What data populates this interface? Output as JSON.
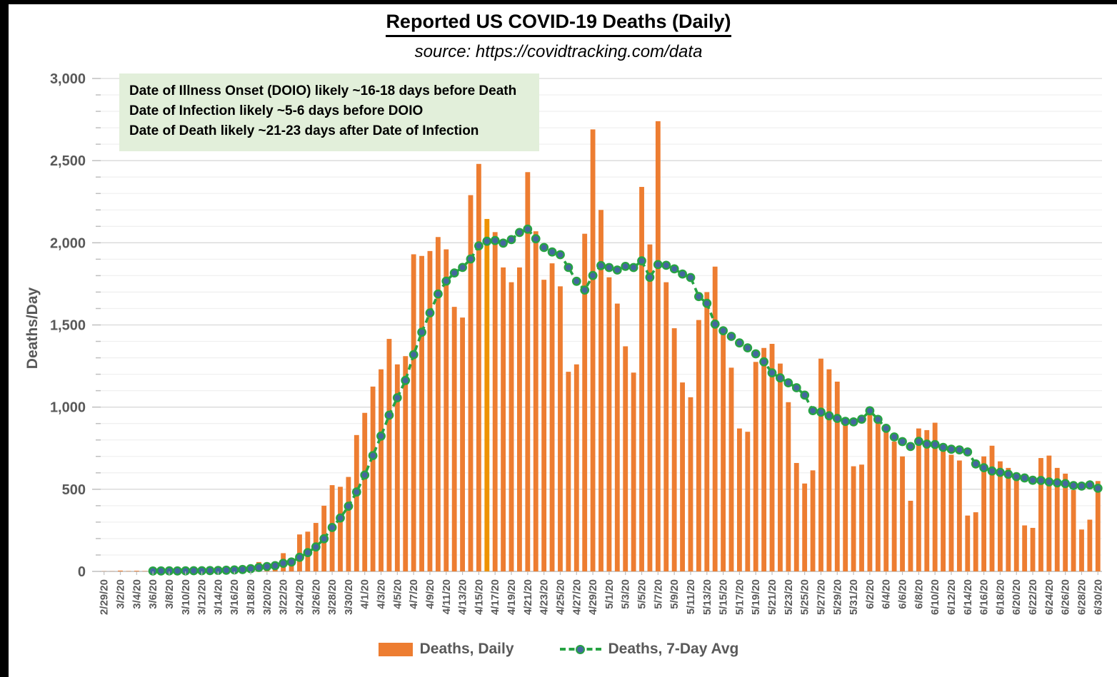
{
  "header": {
    "title": "Reported US COVID-19 Deaths (Daily)",
    "subtitle": "source: https://covidtracking.com/data"
  },
  "annotation": {
    "line1": "Date of Illness Onset (DOIO) likely ~16-18 days before Death",
    "line2": "Date of Infection likely ~5-6 days before DOIO",
    "line3": "Date of Death likely ~21-23 days after Date of Infection"
  },
  "legend": {
    "daily_label": "Deaths, Daily",
    "avg_label": "Deaths, 7-Day Avg"
  },
  "colors": {
    "bar": "#ED7D31",
    "highlight_bar": "#EE9302",
    "avg_line": "#27A343",
    "avg_marker_fill": "#44679F",
    "annotation_bg": "#E2EFDA",
    "axis_text": "#595959",
    "gridline_major": "#D9D9D9",
    "gridline_minor": "#F0F0F0",
    "axis_line": "#BFBFBF"
  },
  "chart_data": {
    "type": "bar",
    "title": "Reported US COVID-19 Deaths (Daily)",
    "xlabel": "",
    "ylabel": "Deaths/Day",
    "ylim": [
      0,
      3000
    ],
    "y_major_step": 500,
    "y_minor_step": 100,
    "y_tick_labels": [
      "0",
      "500",
      "1,000",
      "1,500",
      "2,000",
      "2,500",
      "3,000"
    ],
    "grid": "horizontal, minor every 100 and major every 500",
    "legend_position": "bottom center",
    "x": [
      "2/29/20",
      "3/1/20",
      "3/2/20",
      "3/3/20",
      "3/4/20",
      "3/5/20",
      "3/6/20",
      "3/7/20",
      "3/8/20",
      "3/9/20",
      "3/10/20",
      "3/11/20",
      "3/12/20",
      "3/13/20",
      "3/14/20",
      "3/15/20",
      "3/16/20",
      "3/17/20",
      "3/18/20",
      "3/19/20",
      "3/20/20",
      "3/21/20",
      "3/22/20",
      "3/23/20",
      "3/24/20",
      "3/25/20",
      "3/26/20",
      "3/27/20",
      "3/28/20",
      "3/29/20",
      "3/30/20",
      "3/31/20",
      "4/1/20",
      "4/2/20",
      "4/3/20",
      "4/4/20",
      "4/5/20",
      "4/6/20",
      "4/7/20",
      "4/8/20",
      "4/9/20",
      "4/10/20",
      "4/11/20",
      "4/12/20",
      "4/13/20",
      "4/14/20",
      "4/15/20",
      "4/16/20",
      "4/17/20",
      "4/18/20",
      "4/19/20",
      "4/20/20",
      "4/21/20",
      "4/22/20",
      "4/23/20",
      "4/24/20",
      "4/25/20",
      "4/26/20",
      "4/27/20",
      "4/28/20",
      "4/29/20",
      "4/30/20",
      "5/1/20",
      "5/2/20",
      "5/3/20",
      "5/4/20",
      "5/5/20",
      "5/6/20",
      "5/7/20",
      "5/8/20",
      "5/9/20",
      "5/10/20",
      "5/11/20",
      "5/12/20",
      "5/13/20",
      "5/14/20",
      "5/15/20",
      "5/16/20",
      "5/17/20",
      "5/18/20",
      "5/19/20",
      "5/20/20",
      "5/21/20",
      "5/22/20",
      "5/23/20",
      "5/24/20",
      "5/25/20",
      "5/26/20",
      "5/27/20",
      "5/28/20",
      "5/29/20",
      "5/30/20",
      "5/31/20",
      "6/1/20",
      "6/2/20",
      "6/3/20",
      "6/4/20",
      "6/5/20",
      "6/6/20",
      "6/7/20",
      "6/8/20",
      "6/9/20",
      "6/10/20",
      "6/11/20",
      "6/12/20",
      "6/13/20",
      "6/14/20",
      "6/15/20",
      "6/16/20",
      "6/17/20",
      "6/18/20",
      "6/19/20",
      "6/20/20",
      "6/21/20",
      "6/22/20",
      "6/23/20",
      "6/24/20",
      "6/25/20",
      "6/26/20",
      "6/27/20",
      "6/28/20",
      "6/29/20",
      "6/30/20"
    ],
    "x_tick_labels_every": 2,
    "series": [
      {
        "name": "Deaths, Daily",
        "type": "bar",
        "color": "#ED7D31",
        "highlight_index": 47,
        "highlight_date": "4/16/20",
        "highlight_color": "#EE9302",
        "values": [
          1,
          1,
          5,
          2,
          4,
          2,
          3,
          3,
          4,
          4,
          5,
          8,
          4,
          8,
          10,
          12,
          18,
          23,
          41,
          57,
          49,
          46,
          111,
          73,
          225,
          242,
          295,
          400,
          525,
          515,
          575,
          830,
          965,
          1125,
          1230,
          1415,
          1260,
          1310,
          1930,
          1920,
          1950,
          2035,
          1960,
          1610,
          1545,
          2290,
          2480,
          2145,
          2065,
          1850,
          1760,
          1850,
          2430,
          2070,
          1775,
          1875,
          1735,
          1215,
          1260,
          2055,
          2690,
          2200,
          1790,
          1630,
          1370,
          1210,
          2340,
          1990,
          2740,
          1760,
          1480,
          1150,
          1060,
          1530,
          1700,
          1855,
          1480,
          1240,
          870,
          850,
          1275,
          1360,
          1385,
          1265,
          1030,
          660,
          535,
          615,
          1295,
          1230,
          1155,
          900,
          640,
          650,
          975,
          925,
          850,
          790,
          700,
          430,
          870,
          860,
          905,
          730,
          710,
          675,
          340,
          360,
          700,
          765,
          670,
          630,
          575,
          280,
          265,
          690,
          705,
          630,
          595,
          495,
          255,
          315,
          550
        ]
      },
      {
        "name": "Deaths, 7-Day Avg",
        "type": "line",
        "color": "#27A343",
        "marker_fill": "#44679F",
        "derived": "7-day trailing average of Deaths, Daily (first point on 7th day)"
      }
    ]
  }
}
